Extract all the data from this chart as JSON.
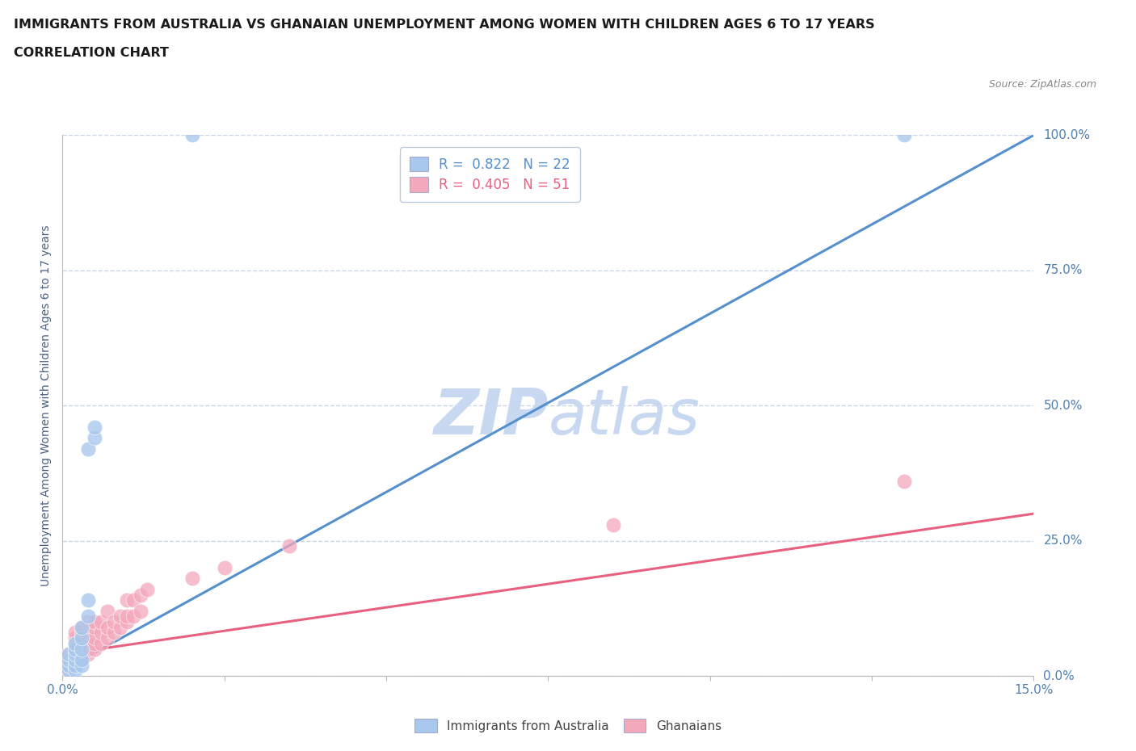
{
  "title_line1": "IMMIGRANTS FROM AUSTRALIA VS GHANAIAN UNEMPLOYMENT AMONG WOMEN WITH CHILDREN AGES 6 TO 17 YEARS",
  "title_line2": "CORRELATION CHART",
  "source": "Source: ZipAtlas.com",
  "ylabel": "Unemployment Among Women with Children Ages 6 to 17 years",
  "xlim": [
    0.0,
    0.15
  ],
  "ylim": [
    0.0,
    1.0
  ],
  "ytick_vals": [
    0.0,
    0.25,
    0.5,
    0.75,
    1.0
  ],
  "ytick_labels": [
    "0.0%",
    "25.0%",
    "50.0%",
    "75.0%",
    "100.0%"
  ],
  "xtick_vals": [
    0.0,
    0.025,
    0.05,
    0.075,
    0.1,
    0.125,
    0.15
  ],
  "xtick_labels": [
    "0.0%",
    "",
    "",
    "",
    "",
    "",
    "15.0%"
  ],
  "australia_color": "#A8C8EE",
  "ghana_color": "#F4A8BC",
  "australia_line_color": "#5590CC",
  "ghana_line_color": "#E86080",
  "watermark_zip": "ZIP",
  "watermark_atlas": "atlas",
  "watermark_color": "#C8D8F0",
  "australia_line_x0": 0.0,
  "australia_line_y0": 0.01,
  "australia_line_x1": 0.15,
  "australia_line_y1": 1.0,
  "ghana_line_x0": 0.0,
  "ghana_line_y0": 0.04,
  "ghana_line_x1": 0.15,
  "ghana_line_y1": 0.3,
  "australia_x": [
    0.001,
    0.001,
    0.001,
    0.001,
    0.002,
    0.002,
    0.002,
    0.002,
    0.002,
    0.002,
    0.003,
    0.003,
    0.003,
    0.003,
    0.003,
    0.004,
    0.004,
    0.004,
    0.005,
    0.005,
    0.13,
    0.02
  ],
  "australia_y": [
    0.01,
    0.02,
    0.03,
    0.04,
    0.01,
    0.02,
    0.03,
    0.04,
    0.05,
    0.06,
    0.02,
    0.03,
    0.05,
    0.07,
    0.09,
    0.11,
    0.14,
    0.42,
    0.44,
    0.46,
    1.0,
    1.0
  ],
  "ghana_x": [
    0.001,
    0.001,
    0.001,
    0.001,
    0.002,
    0.002,
    0.002,
    0.002,
    0.002,
    0.002,
    0.002,
    0.003,
    0.003,
    0.003,
    0.003,
    0.003,
    0.003,
    0.003,
    0.004,
    0.004,
    0.004,
    0.004,
    0.004,
    0.005,
    0.005,
    0.005,
    0.005,
    0.005,
    0.006,
    0.006,
    0.006,
    0.007,
    0.007,
    0.007,
    0.008,
    0.008,
    0.009,
    0.009,
    0.01,
    0.01,
    0.01,
    0.011,
    0.011,
    0.012,
    0.012,
    0.013,
    0.02,
    0.025,
    0.035,
    0.085,
    0.13
  ],
  "ghana_y": [
    0.01,
    0.02,
    0.03,
    0.04,
    0.02,
    0.03,
    0.04,
    0.05,
    0.06,
    0.07,
    0.08,
    0.03,
    0.04,
    0.05,
    0.06,
    0.07,
    0.08,
    0.09,
    0.04,
    0.05,
    0.07,
    0.08,
    0.1,
    0.05,
    0.06,
    0.07,
    0.09,
    0.1,
    0.06,
    0.08,
    0.1,
    0.07,
    0.09,
    0.12,
    0.08,
    0.1,
    0.09,
    0.11,
    0.1,
    0.11,
    0.14,
    0.11,
    0.14,
    0.12,
    0.15,
    0.16,
    0.18,
    0.2,
    0.24,
    0.28,
    0.36
  ],
  "background_color": "#FFFFFF",
  "grid_color": "#C8D4E8",
  "title_color": "#1A1A1A",
  "axis_label_color": "#4A6080",
  "tick_color": "#5080B0",
  "source_color": "#888888"
}
